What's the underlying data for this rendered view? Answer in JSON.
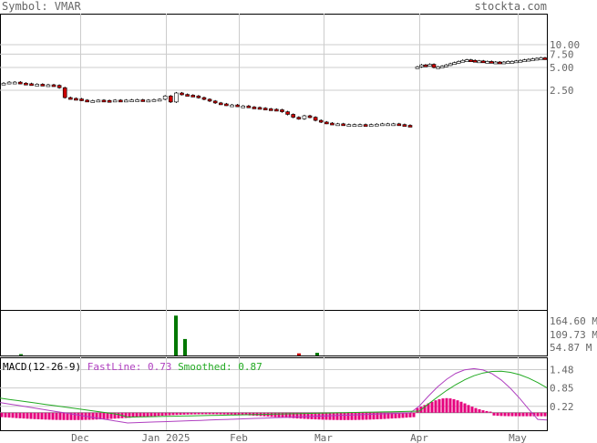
{
  "header": {
    "symbol_label": "Symbol: VMAR",
    "site": "stockta.com"
  },
  "chart_data": {
    "type": "candlestick",
    "symbol": "VMAR",
    "price_axis": {
      "scale": "log",
      "ticks": [
        "10.00",
        "7.50",
        "5.00",
        "2.50"
      ],
      "tick_values": [
        10,
        7.5,
        5,
        2.5
      ]
    },
    "x_labels": [
      "Dec",
      "Jan 2025",
      "Feb",
      "Mar",
      "Apr",
      "May"
    ],
    "volume_axis": {
      "ticks": [
        "164.60 M",
        "109.73 M",
        "54.87 M"
      ]
    },
    "macd": {
      "label": "MACD(12-26-9)",
      "fast_label": "FastLine:",
      "fast_value": "0.73",
      "smooth_label": "Smoothed:",
      "smooth_value": "0.87",
      "ticks": [
        "1.48",
        "0.85",
        "0.22"
      ]
    },
    "price_segments": [
      {
        "name": "pre-gap",
        "closes": [
          3.1,
          3.2,
          3.2,
          3.1,
          3.05,
          3.0,
          3.0,
          2.95,
          2.95,
          2.9,
          2.7,
          2.0,
          1.95,
          1.92,
          1.85,
          1.8,
          1.82,
          1.85,
          1.83,
          1.82,
          1.85,
          1.84,
          1.85,
          1.86,
          1.87,
          1.85,
          1.85,
          1.88,
          1.9,
          2.1,
          1.75,
          2.3,
          2.2,
          2.15,
          2.1,
          2.0,
          1.9,
          1.8,
          1.7,
          1.65,
          1.6,
          1.6,
          1.55,
          1.55,
          1.5,
          1.48,
          1.45,
          1.42,
          1.4,
          1.38,
          1.3,
          1.2,
          1.1,
          1.05,
          1.15,
          1.1,
          1.0,
          0.95,
          0.92,
          0.9,
          0.9,
          0.88,
          0.88,
          0.88,
          0.88,
          0.87,
          0.88,
          0.89,
          0.9,
          0.9,
          0.9,
          0.88,
          0.86,
          0.85
        ]
      },
      {
        "name": "post-gap",
        "closes": [
          5.1,
          5.4,
          5.3,
          5.5,
          5.0,
          5.1,
          5.2,
          5.4,
          5.6,
          5.8,
          6.0,
          6.2,
          6.3,
          6.2,
          6.1,
          6.1,
          6.0,
          6.0,
          5.9,
          5.9,
          5.85,
          5.9,
          6.0,
          6.0,
          6.1,
          6.2,
          6.3,
          6.4,
          6.5,
          6.6,
          6.7,
          6.5
        ]
      }
    ],
    "volume_spikes_millions": [
      {
        "x_label_near": "Dec",
        "value": 5
      },
      {
        "x_label_near": "Jan 2025",
        "value": 150
      },
      {
        "x_label_near": "Jan 2025",
        "value": 62
      },
      {
        "x_label_near": "Mar",
        "value": 8
      },
      {
        "x_label_near": "Mar",
        "value": 10
      }
    ]
  }
}
